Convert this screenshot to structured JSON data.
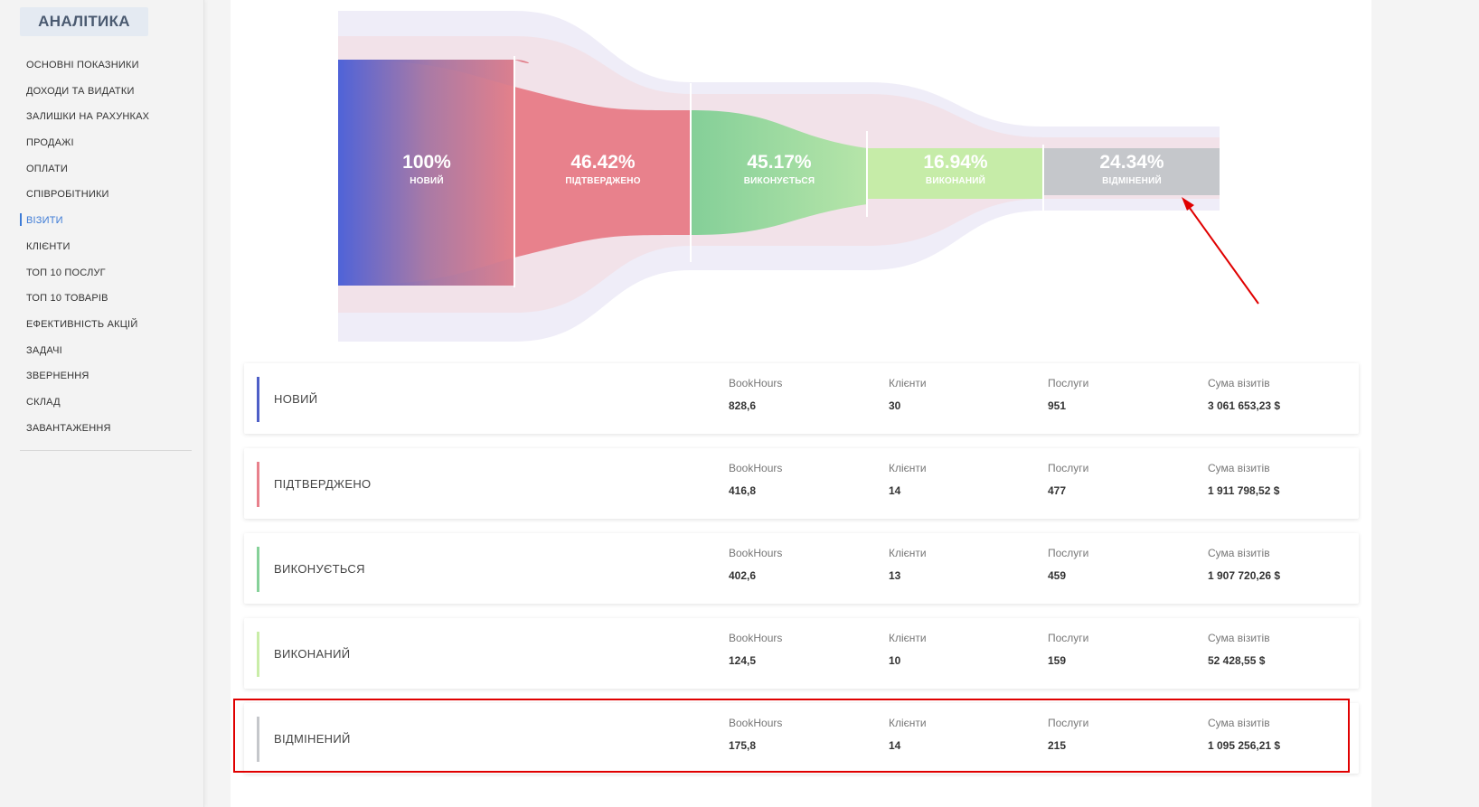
{
  "sidebar": {
    "title": "АНАЛІТИКА",
    "items": [
      {
        "label": "ОСНОВНІ ПОКАЗНИКИ"
      },
      {
        "label": "ДОХОДИ ТА ВИДАТКИ"
      },
      {
        "label": "ЗАЛИШКИ НА РАХУНКАХ"
      },
      {
        "label": "ПРОДАЖІ"
      },
      {
        "label": "ОПЛАТИ"
      },
      {
        "label": "СПІВРОБІТНИКИ"
      },
      {
        "label": "ВІЗИТИ"
      },
      {
        "label": "КЛІЄНТИ"
      },
      {
        "label": "ТОП 10 ПОСЛУГ"
      },
      {
        "label": "ТОП 10 ТОВАРІВ"
      },
      {
        "label": "ЕФЕКТИВНІСТЬ АКЦІЙ"
      },
      {
        "label": "ЗАДАЧІ"
      },
      {
        "label": "ЗВЕРНЕННЯ"
      },
      {
        "label": "СКЛАД"
      },
      {
        "label": "ЗАВАНТАЖЕННЯ"
      }
    ],
    "active_index": 6
  },
  "chart_data": {
    "type": "funnel",
    "stages": [
      {
        "name": "НОВИЙ",
        "percent": 100,
        "label": "100%",
        "color_start": "#5066d8",
        "color_end": "#e08088"
      },
      {
        "name": "ПІДТВЕРДЖЕНО",
        "percent": 46.42,
        "label": "46.42%",
        "color_start": "#e8818c",
        "color_end": "#e8818c"
      },
      {
        "name": "ВИКОНУЄТЬСЯ",
        "percent": 45.17,
        "label": "45.17%",
        "color_start": "#86d199",
        "color_end": "#b4e5a8"
      },
      {
        "name": "ВИКОНАНИЙ",
        "percent": 16.94,
        "label": "16.94%",
        "color_start": "#c4eba6",
        "color_end": "#c4eba6"
      },
      {
        "name": "ВІДМІНЕНИЙ",
        "percent": 24.34,
        "label": "24.34%",
        "color_start": "#c5c7cb",
        "color_end": "#c5c7cb"
      }
    ]
  },
  "metric_headers": {
    "bookhours": "BookHours",
    "clients": "Клієнти",
    "services": "Послуги",
    "sum": "Сума візитів"
  },
  "cards": [
    {
      "status": "НОВИЙ",
      "color": "#4e5fc7",
      "bookhours": "828,6",
      "clients": "30",
      "services": "951",
      "sum": "3 061 653,23 $"
    },
    {
      "status": "ПІДТВЕРДЖЕНО",
      "color": "#e8818c",
      "bookhours": "416,8",
      "clients": "14",
      "services": "477",
      "sum": "1 911 798,52 $"
    },
    {
      "status": "ВИКОНУЄТЬСЯ",
      "color": "#86d199",
      "bookhours": "402,6",
      "clients": "13",
      "services": "459",
      "sum": "1 907 720,26 $"
    },
    {
      "status": "ВИКОНАНИЙ",
      "color": "#c9eda8",
      "bookhours": "124,5",
      "clients": "10",
      "services": "159",
      "sum": "52 428,55 $"
    },
    {
      "status": "ВІДМІНЕНИЙ",
      "color": "#c5c7cb",
      "bookhours": "175,8",
      "clients": "14",
      "services": "215",
      "sum": "1 095 256,21 $"
    }
  ],
  "annotation": {
    "highlight_color": "#e00000",
    "arrow_color": "#e00000"
  }
}
